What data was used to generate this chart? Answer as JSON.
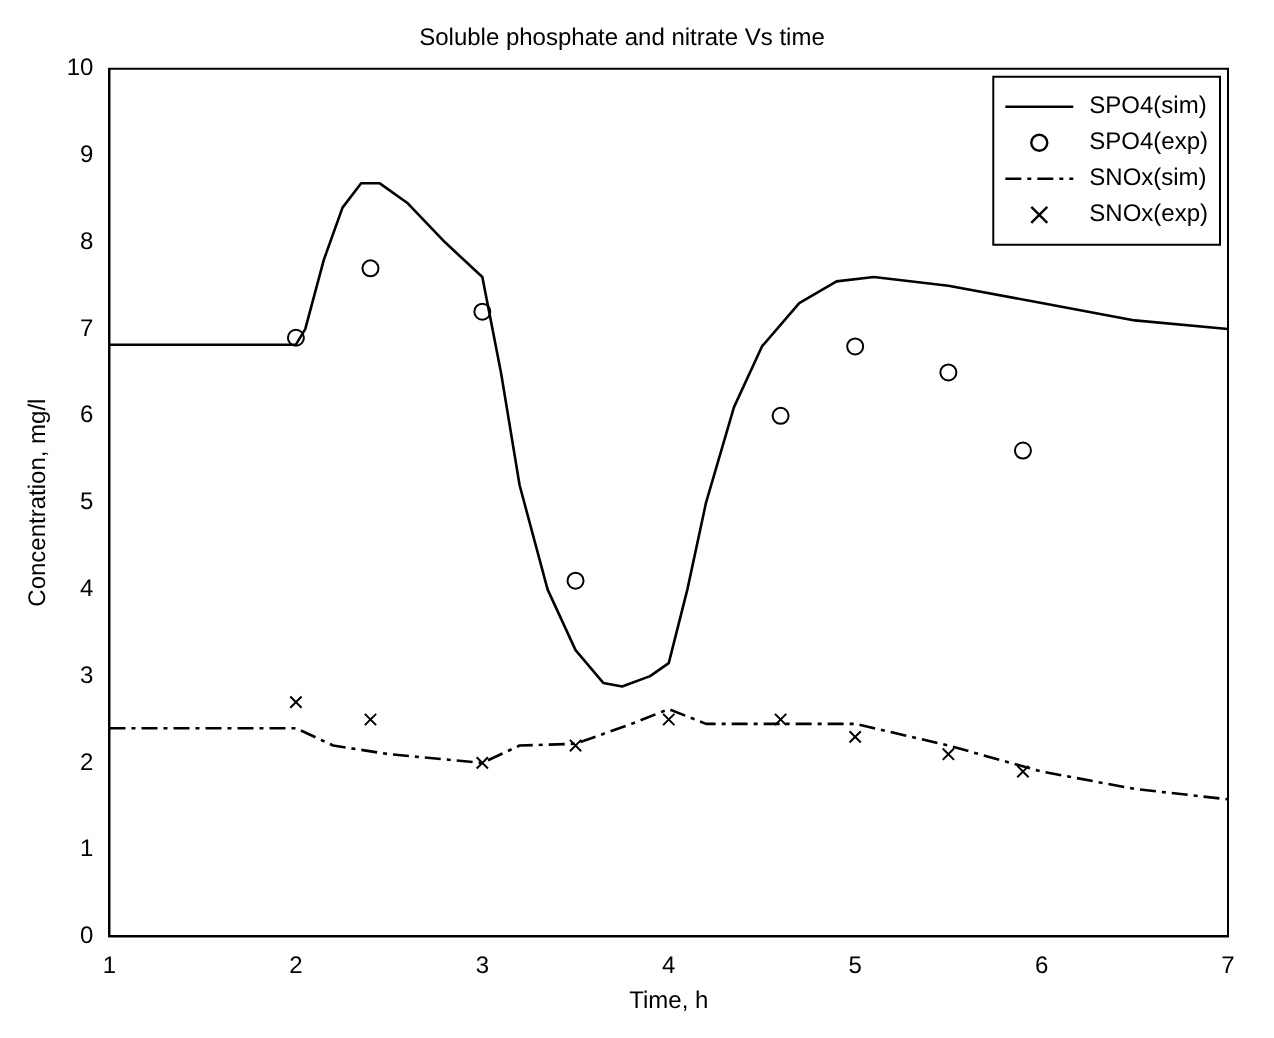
{
  "chart_data": {
    "type": "line",
    "title": "Soluble phosphate and nitrate Vs time",
    "xlabel": "Time, h",
    "ylabel": "Concentration, mg/l",
    "xlim": [
      1,
      7
    ],
    "xticks": [
      1,
      2,
      3,
      4,
      5,
      6,
      7
    ],
    "ylim": [
      0,
      10
    ],
    "yticks": [
      0,
      1,
      2,
      3,
      4,
      5,
      6,
      7,
      8,
      9,
      10
    ],
    "grid": false,
    "legend": "top right",
    "series": [
      {
        "name": "SPO4(sim)",
        "color": "#000000",
        "marker": "none",
        "line_style": "solid",
        "x": [
          1,
          2,
          2.05,
          2.15,
          2.25,
          2.35,
          2.45,
          2.6,
          2.8,
          3,
          3.1,
          3.2,
          3.35,
          3.5,
          3.65,
          3.75,
          3.9,
          4,
          4.1,
          4.2,
          4.35,
          4.5,
          4.7,
          4.9,
          5.1,
          5.5,
          6,
          6.5,
          7
        ],
        "values": [
          6.82,
          6.82,
          7.0,
          7.8,
          8.4,
          8.68,
          8.68,
          8.45,
          8.0,
          7.6,
          6.5,
          5.2,
          4.0,
          3.3,
          2.92,
          2.88,
          3.0,
          3.15,
          4.0,
          5.0,
          6.1,
          6.8,
          7.3,
          7.55,
          7.6,
          7.5,
          7.3,
          7.1,
          7.0
        ]
      },
      {
        "name": "SPO4(exp)",
        "type": "scatter",
        "color": "#000000",
        "marker": "circle",
        "x": [
          2,
          2.4,
          3,
          3.5,
          4.6,
          5,
          5.5,
          5.9
        ],
        "values": [
          6.9,
          7.7,
          7.2,
          4.1,
          6.0,
          6.8,
          6.5,
          5.6
        ]
      },
      {
        "name": "SNOx(sim)",
        "color": "#000000",
        "marker": "none",
        "line_style": "dashdot",
        "x": [
          1,
          2,
          2.2,
          2.5,
          3,
          3.2,
          3.5,
          3.8,
          4,
          4.2,
          4.6,
          5,
          5.5,
          6,
          6.5,
          7
        ],
        "values": [
          2.4,
          2.4,
          2.2,
          2.1,
          2.0,
          2.2,
          2.22,
          2.45,
          2.62,
          2.45,
          2.45,
          2.45,
          2.2,
          1.9,
          1.7,
          1.58
        ]
      },
      {
        "name": "SNOx(exp)",
        "type": "scatter",
        "color": "#000000",
        "marker": "cross",
        "x": [
          2,
          2.4,
          3,
          3.5,
          4,
          4.6,
          5,
          5.5,
          5.9
        ],
        "values": [
          2.7,
          2.5,
          2.0,
          2.2,
          2.5,
          2.5,
          2.3,
          2.1,
          1.9
        ]
      }
    ]
  }
}
